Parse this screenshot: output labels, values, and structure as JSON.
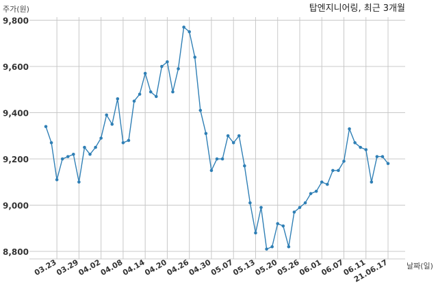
{
  "chart_data": {
    "type": "line",
    "title": "탑엔지니어링, 최근 3개월",
    "xlabel": "날짜(일)",
    "ylabel": "주가(원)",
    "ylim": [
      8780,
      9810
    ],
    "yticks": [
      8800,
      9000,
      9200,
      9400,
      9600,
      9800
    ],
    "ytick_labels": [
      "8,800",
      "9,000",
      "9,200",
      "9,400",
      "9,600",
      "9,800"
    ],
    "xtick_labels": [
      "03.23",
      "03.29",
      "04.02",
      "04.08",
      "04.14",
      "04.20",
      "04.26",
      "04.30",
      "05.07",
      "05.13",
      "05.20",
      "05.26",
      "06.01",
      "06.07",
      "06.11",
      "21.06.17"
    ],
    "xtick_index": [
      2,
      6,
      10,
      14,
      18,
      22,
      26,
      30,
      34,
      38,
      42,
      46,
      50,
      54,
      58,
      62
    ],
    "color": "#2f7fb5",
    "grid": true,
    "series": [
      {
        "values": [
          9340,
          9270,
          9110,
          9200,
          9210,
          9220,
          9100,
          9250,
          9220,
          9250,
          9290,
          9390,
          9350,
          9460,
          9270,
          9280,
          9450,
          9480,
          9570,
          9490,
          9470,
          9600,
          9620,
          9490,
          9590,
          9770,
          9750,
          9640,
          9410,
          9310,
          9150,
          9200,
          9200,
          9300,
          9270,
          9300,
          9170,
          9010,
          8880,
          8990,
          8810,
          8820,
          8920,
          8910,
          8820,
          8970,
          8990,
          9010,
          9050,
          9060,
          9100,
          9090,
          9150,
          9150,
          9190,
          9330,
          9270,
          9250,
          9240,
          9100,
          9210,
          9210,
          9180
        ]
      }
    ]
  }
}
